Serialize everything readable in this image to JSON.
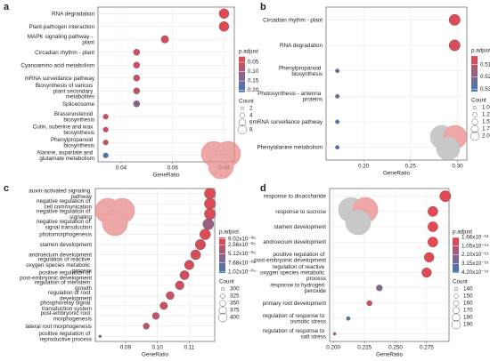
{
  "chart_data": [
    {
      "type": "scatter",
      "label": "a",
      "xlabel": "GeneRatio",
      "color_title": "p.adjust",
      "size_title": "Count",
      "grid": true,
      "colors": [
        "#e8474f",
        "#3d7ab8"
      ],
      "categories": [
        "RNA degradation",
        "Plant-pathogen interaction",
        "MAPK signaling pathway - plant",
        "Circadian rhythm - plant",
        "Cyanoamino acid metabolism",
        "mRNA surveillance pathway",
        "Biosynthesis of various plant secondary metabolites",
        "Spliceosome",
        "Brassinosteroid biosynthesis",
        "Cutin, suberine and wax biosynthesis",
        "Phenylpropanoid biosynthesis",
        "Alanine, aspartate and glutamate metabolism"
      ],
      "values": [
        0.08,
        0.08,
        0.057,
        0.046,
        0.046,
        0.046,
        0.046,
        0.046,
        0.034,
        0.034,
        0.034,
        0.034
      ],
      "counts": [
        7,
        7,
        5,
        4,
        4,
        4,
        4,
        4,
        3,
        3,
        3,
        3
      ],
      "p_adjust": [
        0.03,
        0.03,
        0.04,
        0.05,
        0.05,
        0.06,
        0.06,
        0.12,
        0.04,
        0.05,
        0.06,
        0.2
      ],
      "xlim": [
        0.031,
        0.084
      ],
      "xticks": [
        0.04,
        0.06,
        0.08
      ],
      "clim": [
        0.02,
        0.21
      ],
      "cticks": [
        0.05,
        {
          "value": 0.1,
          "label": "0.10"
        },
        0.15,
        {
          "value": 0.2,
          "label": "0.20"
        }
      ],
      "sizeticks": [
        2,
        4,
        6,
        8
      ]
    },
    {
      "type": "scatter",
      "label": "b",
      "xlabel": "GeneRatio",
      "color_title": "p.adjust",
      "size_title": "Count",
      "grid": true,
      "colors": [
        "#e8474f",
        "#3d7ab8"
      ],
      "categories": [
        "Circadian rhythm - plant",
        "RNA degradation",
        "Phenylpropanoid biosynthesis",
        "Photosynthesis - antenna proteins",
        "mRNA surveillance pathway",
        "Phenylalanine metabolism"
      ],
      "values": [
        0.297,
        0.297,
        0.172,
        0.172,
        0.172,
        0.172
      ],
      "counts": [
        2,
        2,
        1,
        1,
        1,
        1
      ],
      "p_adjust": [
        0.505,
        0.506,
        0.527,
        0.525,
        0.53,
        0.531
      ],
      "xlim": [
        0.16,
        0.31
      ],
      "xticks": [
        {
          "value": 0.2,
          "label": "0.20"
        },
        0.25,
        {
          "value": 0.3,
          "label": "0.30"
        }
      ],
      "clim": [
        0.503,
        0.532
      ],
      "cticks": [
        0.51,
        0.52,
        0.53
      ],
      "sizeticks": [
        {
          "value": 1,
          "label": "1.00"
        },
        1.25,
        {
          "value": 1.5,
          "label": "1.50"
        },
        1.75,
        {
          "value": 2,
          "label": "2.00"
        }
      ]
    },
    {
      "type": "scatter",
      "label": "c",
      "xlabel": "GeneRatio",
      "color_title": "p.adjust",
      "size_title": "Count",
      "grid": true,
      "colors": [
        "#e8474f",
        "#3d7ab8"
      ],
      "categories": [
        "auxin-activated signaling pathway",
        "negative regulation of cell communication",
        "negative regulation of signaling",
        "negative regulation of signal transduction",
        "photomorphogenesis",
        "stamen development",
        "androecium development",
        "regulation of reactive oxygen species metabolic process",
        "positive regulation of post-embryonic development",
        "regulation of meristem growth",
        "regulation of root development",
        "phosphorelay signal transduction system",
        "post-embryonic root morphogenesis",
        "lateral root morphogenesis",
        "positive regulation of reproductive process"
      ],
      "values": [
        0.1165,
        0.1165,
        0.1165,
        0.116,
        0.115,
        0.1135,
        0.112,
        0.11,
        0.1085,
        0.107,
        0.104,
        0.102,
        0.0995,
        0.0965,
        0.082
      ],
      "counts": [
        401,
        401,
        401,
        399,
        396,
        390,
        385,
        378,
        373,
        368,
        358,
        351,
        342,
        332,
        282
      ],
      "p_adjust": [
        1.2e-05,
        1.2e-05,
        1.3e-05,
        5e-05,
        1.4e-05,
        1.5e-05,
        1.6e-05,
        1.8e-05,
        1.7e-05,
        2e-05,
        2.2e-05,
        2.4e-05,
        2.5e-05,
        2.6e-05,
        0.0001
      ],
      "xlim": [
        0.0805,
        0.118
      ],
      "xticks": [
        0.09,
        {
          "value": 0.1,
          "label": "0.10"
        },
        0.11
      ],
      "clim": [
        5e-06,
        0.000105
      ],
      "cticks": [
        {
          "value": 9.02e-06,
          "label": "9.02x10⁻⁰⁶"
        },
        {
          "value": 2.56e-05,
          "label": "2.56x10⁻⁰⁵"
        },
        {
          "value": 5.12e-05,
          "label": "5.12x10⁻⁰⁵"
        },
        {
          "value": 7.68e-05,
          "label": "7.68x10⁻⁰⁵"
        },
        {
          "value": 0.000102,
          "label": "1.02x10⁻⁰⁴"
        }
      ],
      "sizeticks": [
        300,
        325,
        350,
        375,
        400
      ]
    },
    {
      "type": "scatter",
      "label": "d",
      "xlabel": "GeneRatio",
      "color_title": "p.adjust",
      "size_title": "Count",
      "grid": true,
      "colors": [
        "#e8474f",
        "#3d7ab8"
      ],
      "categories": [
        "response to disaccharide",
        "response to sucrose",
        "stamen development",
        "androecium development",
        "positive regulation of post-embryonic development",
        "regulation of reactive oxygen species metabolic process",
        "response to hydrogen peroxide",
        "primary root development",
        "regulation of response to osmotic stress",
        "regulation of response to salt stress"
      ],
      "values": [
        0.29,
        0.28,
        0.28,
        0.28,
        0.277,
        0.275,
        0.237,
        0.229,
        0.212,
        0.201
      ],
      "counts": [
        190,
        183,
        183,
        183,
        181,
        180,
        155,
        150,
        139,
        132
      ],
      "p_adjust": [
        2e-17,
        4e-17,
        5e-17,
        6e-17,
        1e-16,
        2e-16,
        2.6e-15,
        4e-16,
        4.2e-15,
        1.1e-15
      ],
      "xlim": [
        0.197,
        0.293
      ],
      "xticks": [
        {
          "value": 0.2,
          "label": "0.200"
        },
        0.225,
        {
          "value": 0.25,
          "label": "0.250"
        },
        0.275
      ],
      "clim": [
        0,
        4.3e-15
      ],
      "cticks": [
        {
          "value": 1.66e-18,
          "label": "1.66x10⁻¹⁸"
        },
        {
          "value": 1.05e-15,
          "label": "1.05x10⁻¹⁵"
        },
        {
          "value": 2.1e-15,
          "label": "2.10x10⁻¹⁵"
        },
        {
          "value": 3.15e-15,
          "label": "3.15x10⁻¹⁵"
        },
        {
          "value": 4.2e-15,
          "label": "4.20x10⁻¹⁵"
        }
      ],
      "sizeticks": [
        140,
        150,
        160,
        170,
        180,
        190
      ]
    }
  ]
}
